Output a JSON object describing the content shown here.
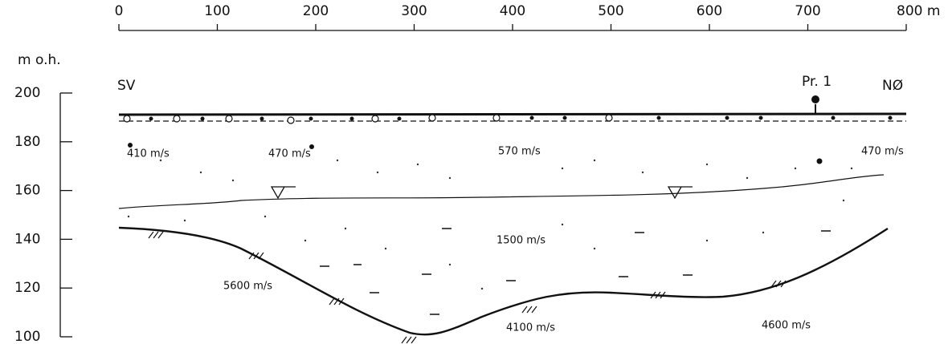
{
  "x_axis": {
    "ticks": [
      "0",
      "100",
      "200",
      "300",
      "400",
      "500",
      "600",
      "700",
      "800 m"
    ]
  },
  "y_axis": {
    "title": "m o.h.",
    "ticks": [
      "200",
      "180",
      "160",
      "140",
      "120",
      "100"
    ]
  },
  "labels": {
    "left": "SV",
    "right": "NØ",
    "probe": "Pr. 1"
  },
  "velocities": [
    "410 m/s",
    "470 m/s",
    "570 m/s",
    "470 m/s",
    "1500 m/s",
    "5600 m/s",
    "4100 m/s",
    "4600 m/s"
  ]
}
